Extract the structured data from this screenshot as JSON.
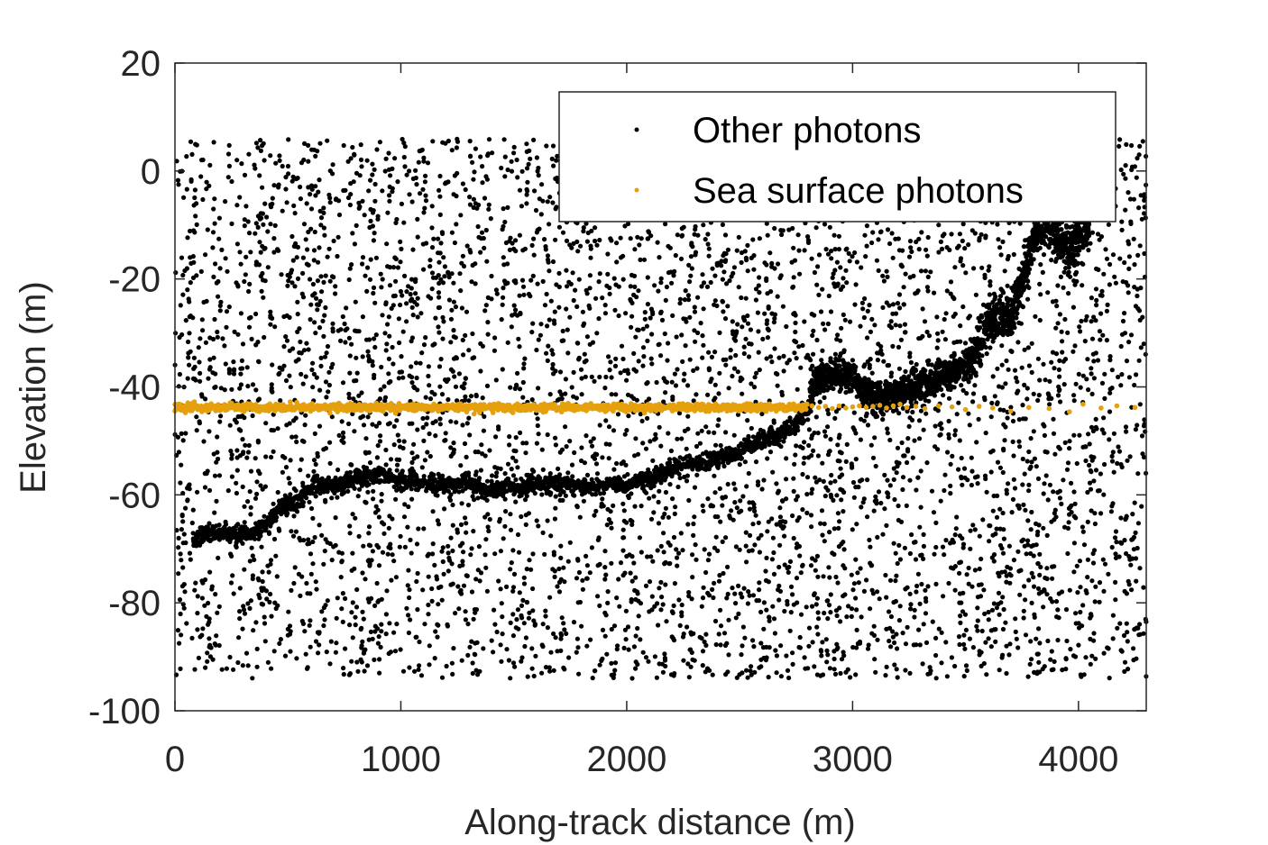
{
  "chart_data": {
    "type": "scatter",
    "title": "",
    "xlabel": "Along-track distance (m)",
    "ylabel": "Elevation (m)",
    "xlim": [
      0,
      4300
    ],
    "ylim": [
      -100,
      20
    ],
    "xticks": [
      0,
      1000,
      2000,
      3000,
      4000
    ],
    "yticks": [
      20,
      0,
      -20,
      -40,
      -60,
      -80,
      -100
    ],
    "grid": false,
    "legend_position": "top-right",
    "noise_region": {
      "x_range": [
        0,
        4300
      ],
      "y_range": [
        -94,
        6
      ],
      "approx_point_count": 5200
    },
    "series": [
      {
        "name": "Other photons",
        "color": "#000000",
        "marker": "dot",
        "seafloor_profile": [
          [
            80,
            -68
          ],
          [
            150,
            -67
          ],
          [
            250,
            -67.5
          ],
          [
            350,
            -67
          ],
          [
            420,
            -65
          ],
          [
            480,
            -61
          ],
          [
            520,
            -62
          ],
          [
            560,
            -60
          ],
          [
            620,
            -58
          ],
          [
            700,
            -58.5
          ],
          [
            800,
            -57
          ],
          [
            900,
            -56.5
          ],
          [
            1000,
            -57
          ],
          [
            1100,
            -58
          ],
          [
            1200,
            -58
          ],
          [
            1300,
            -58
          ],
          [
            1400,
            -59
          ],
          [
            1500,
            -58.5
          ],
          [
            1600,
            -58
          ],
          [
            1700,
            -58
          ],
          [
            1800,
            -58.5
          ],
          [
            1900,
            -58
          ],
          [
            2000,
            -58
          ],
          [
            2100,
            -57
          ],
          [
            2200,
            -55
          ],
          [
            2300,
            -54
          ],
          [
            2400,
            -53.5
          ],
          [
            2500,
            -52
          ],
          [
            2600,
            -50
          ],
          [
            2700,
            -48
          ],
          [
            2750,
            -47
          ],
          [
            2800,
            -44
          ],
          [
            2830,
            -39
          ],
          [
            2900,
            -37.5
          ],
          [
            3000,
            -38
          ],
          [
            3050,
            -41
          ],
          [
            3100,
            -42
          ],
          [
            3200,
            -41
          ],
          [
            3300,
            -40
          ],
          [
            3400,
            -38
          ],
          [
            3500,
            -36
          ],
          [
            3560,
            -33
          ],
          [
            3600,
            -28
          ],
          [
            3650,
            -27
          ],
          [
            3700,
            -27
          ],
          [
            3750,
            -20
          ],
          [
            3800,
            -13
          ],
          [
            3850,
            -10
          ],
          [
            3900,
            -12
          ],
          [
            3950,
            -14
          ],
          [
            4000,
            -13
          ],
          [
            4050,
            -10
          ]
        ]
      },
      {
        "name": "Sea surface photons",
        "color": "#E5A00D",
        "marker": "dot",
        "elevation": -43.8,
        "dense_x_range": [
          0,
          2800
        ],
        "sparse_points": [
          [
            2820,
            -43.5
          ],
          [
            2850,
            -43.8
          ],
          [
            2880,
            -43.6
          ],
          [
            2910,
            -44
          ],
          [
            2940,
            -43.5
          ],
          [
            2970,
            -43.9
          ],
          [
            3000,
            -43.7
          ],
          [
            3030,
            -43.5
          ],
          [
            3060,
            -43.8
          ],
          [
            3090,
            -43.6
          ],
          [
            3120,
            -43.4
          ],
          [
            3150,
            -43.9
          ],
          [
            3180,
            -43.5
          ],
          [
            3210,
            -43.2
          ],
          [
            3240,
            -43.8
          ],
          [
            3280,
            -43.6
          ],
          [
            3320,
            -44
          ],
          [
            3380,
            -43.5
          ],
          [
            3440,
            -43.7
          ],
          [
            3500,
            -44.2
          ],
          [
            3560,
            -43.6
          ],
          [
            3620,
            -43.9
          ],
          [
            3700,
            -44.5
          ],
          [
            3780,
            -43.8
          ],
          [
            3870,
            -44
          ],
          [
            3960,
            -44.6
          ],
          [
            4020,
            -43.2
          ],
          [
            4100,
            -43.9
          ],
          [
            4170,
            -43.5
          ],
          [
            4250,
            -43.8
          ]
        ]
      }
    ]
  }
}
